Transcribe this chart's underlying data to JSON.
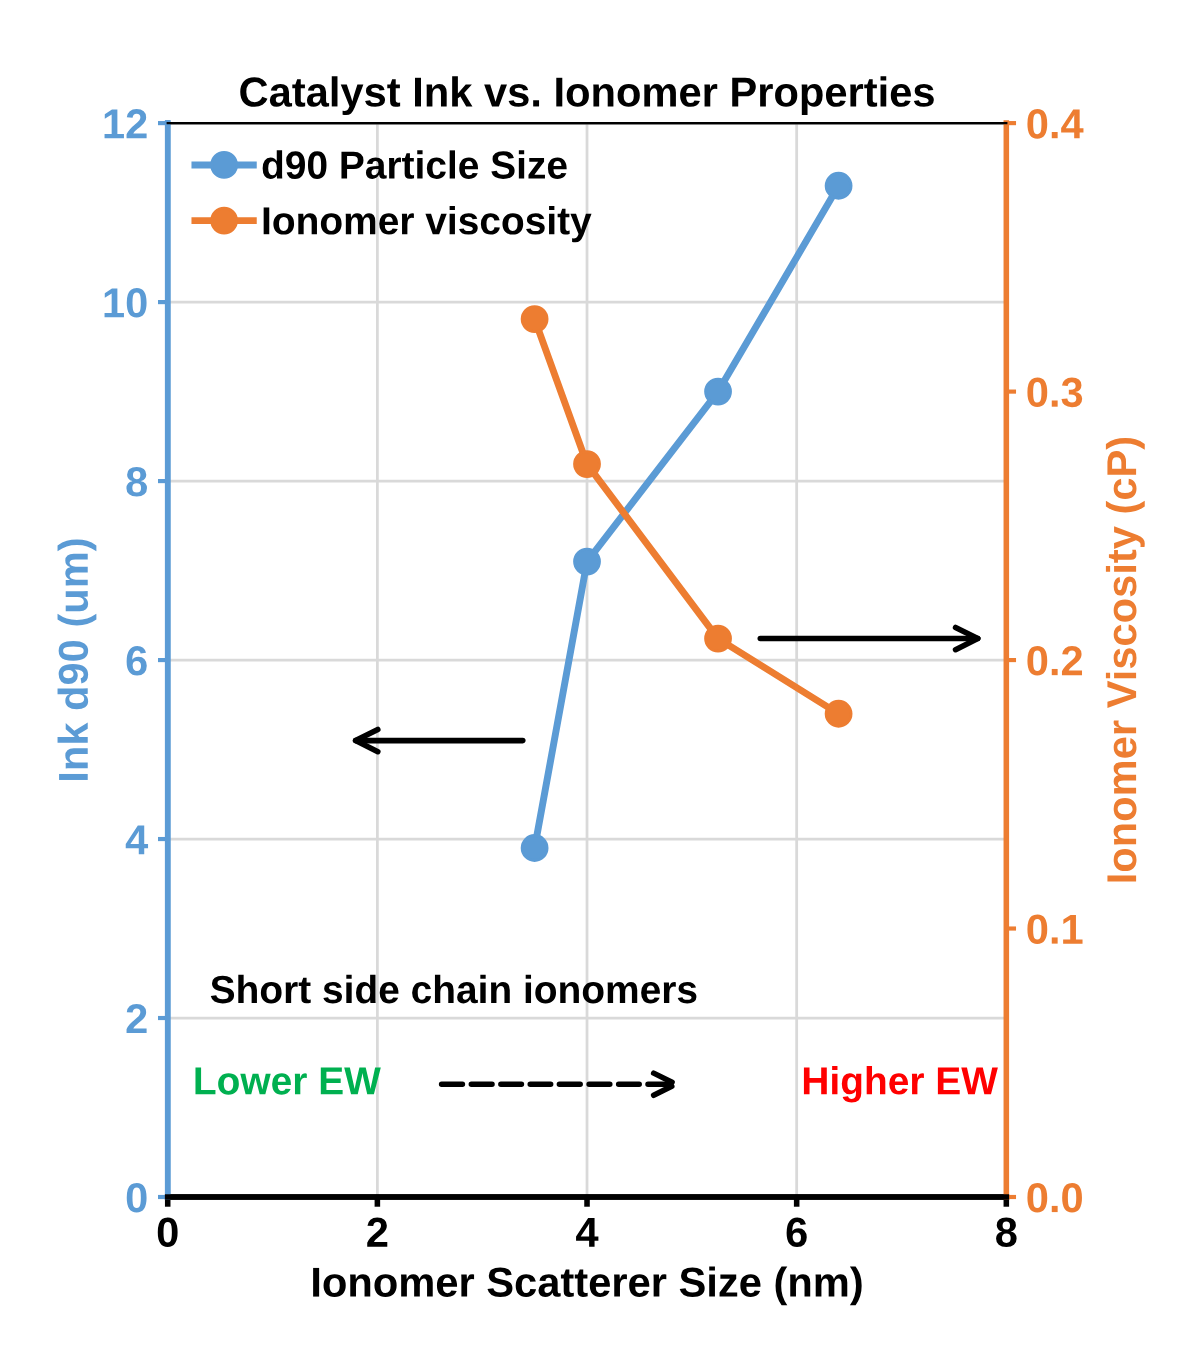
{
  "chart_data": {
    "type": "line",
    "title": "Catalyst Ink vs. Ionomer Properties",
    "xlabel": "Ionomer Scatterer Size (nm)",
    "ylabel": "Ink d90 (um)",
    "y2label": "Ionomer Viscosity (cP)",
    "x": [
      3.5,
      4.0,
      5.25,
      6.4
    ],
    "series": [
      {
        "name": "d90 Particle Size",
        "color": "#5b9bd5",
        "values": [
          3.9,
          7.1,
          9.0,
          11.3
        ]
      },
      {
        "name": "Ionomer viscosity",
        "color": "#ed7d31",
        "values": [
          0.327,
          0.273,
          0.208,
          0.18
        ],
        "axis": "y2"
      }
    ],
    "xlim": [
      0,
      8
    ],
    "xticks": [
      0,
      2,
      4,
      6,
      8
    ],
    "ylim": [
      0,
      12
    ],
    "yticks": [
      0,
      2,
      4,
      6,
      8,
      10,
      12
    ],
    "y2lim": [
      0.0,
      0.4
    ],
    "y2ticks": [
      {
        "value": 0,
        "label": "0.0"
      },
      0.1,
      0.2,
      0.3,
      0.4
    ],
    "annotations": [
      "Short side chain ionomers",
      "Lower EW",
      "Higher EW"
    ],
    "grid": true,
    "legend": "top left",
    "marker": "circle",
    "line_style": "solid"
  }
}
